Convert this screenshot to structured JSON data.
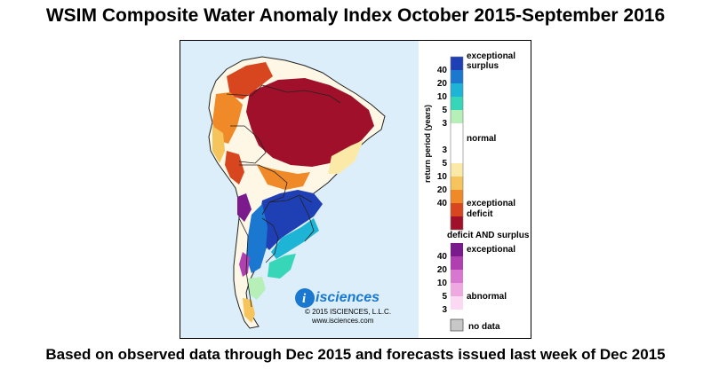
{
  "title": "WSIM Composite Water Anomaly Index October 2015-September 2016",
  "caption": "Based on observed data through Dec 2015 and forecasts issued last week of Dec 2015",
  "logo": {
    "brand": "isciences",
    "copyright": "© 2015 ISCIENCES, L.L.C.",
    "website": "www.isciences.com"
  },
  "legend": {
    "axis_label": "return period (years)",
    "surplus_label_1": "exceptional",
    "surplus_label_2": "surplus",
    "normal_label": "normal",
    "deficit_label_1": "exceptional",
    "deficit_label_2": "deficit",
    "surplus_ticks": [
      "40",
      "20",
      "10",
      "5",
      "3"
    ],
    "deficit_ticks": [
      "3",
      "5",
      "10",
      "20",
      "40"
    ],
    "surplus_colors": [
      "#1f3fb4",
      "#1a78d0",
      "#1eb4d6",
      "#38d6b8",
      "#b6f0b8"
    ],
    "normal_color": "#ffffff",
    "deficit_colors": [
      "#fbe9a8",
      "#f5c45c",
      "#f08a28",
      "#d8461f",
      "#a0102a"
    ],
    "both_title": "deficit AND surplus",
    "both_label_1": "exceptional",
    "both_label_2": "abnormal",
    "both_ticks": [
      "40",
      "20",
      "10",
      "5",
      "3"
    ],
    "both_colors": [
      "#7b1a8c",
      "#b040b0",
      "#d877cf",
      "#eeaae0",
      "#fbd9f2"
    ],
    "nodata_label": "no data",
    "nodata_color": "#c8c8c8"
  },
  "map": {
    "ocean_color": "#dbeef9",
    "land_color": "#fff7e6"
  }
}
